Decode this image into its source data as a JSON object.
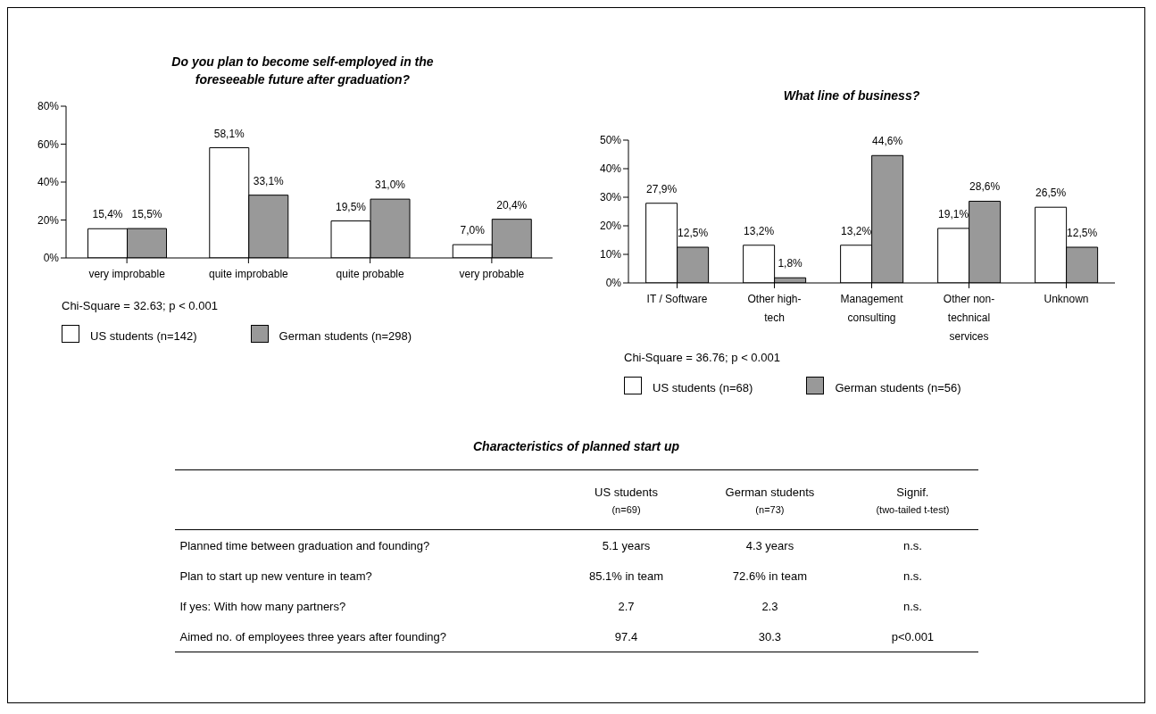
{
  "chart_data": [
    {
      "type": "bar",
      "title": "Do you plan to become self-employed in the foreseeable future after graduation?",
      "categories": [
        "very improbable",
        "quite improbable",
        "quite probable",
        "very probable"
      ],
      "series": [
        {
          "name": "US students (n=142)",
          "color": "#ffffff",
          "values": [
            15.4,
            58.1,
            19.5,
            7.0
          ],
          "value_labels": [
            "15,4%",
            "58,1%",
            "19,5%",
            "7,0%"
          ]
        },
        {
          "name": "German students (n=298)",
          "color": "#999999",
          "values": [
            15.5,
            33.1,
            31.0,
            20.4
          ],
          "value_labels": [
            "15,5%",
            "33,1%",
            "31,0%",
            "20,4%"
          ]
        }
      ],
      "ylim": [
        0,
        80
      ],
      "yticks": [
        {
          "value": 0,
          "label": "0%"
        },
        {
          "value": 20,
          "label": "20%"
        },
        {
          "value": 40,
          "label": "40%"
        },
        {
          "value": 60,
          "label": "60%"
        },
        {
          "value": 80,
          "label": "80%"
        }
      ],
      "legend": "bottom",
      "annotations": [
        "Chi-Square = 32.63; p < 0.001"
      ]
    },
    {
      "type": "bar",
      "title": "What line of business?",
      "categories": [
        "IT / Software",
        "Other high-tech",
        "Management consulting",
        "Other non-technical services",
        "Unknown"
      ],
      "series": [
        {
          "name": "US students (n=68)",
          "color": "#ffffff",
          "values": [
            27.9,
            13.2,
            13.2,
            19.1,
            26.5
          ],
          "value_labels": [
            "27,9%",
            "13,2%",
            "13,2%",
            "19,1%",
            "26,5%"
          ]
        },
        {
          "name": "German students (n=56)",
          "color": "#999999",
          "values": [
            12.5,
            1.8,
            44.6,
            28.6,
            12.5
          ],
          "value_labels": [
            "12,5%",
            "1,8%",
            "44,6%",
            "28,6%",
            "12,5%"
          ]
        }
      ],
      "ylim": [
        0,
        50
      ],
      "yticks": [
        {
          "value": 0,
          "label": "0%"
        },
        {
          "value": 10,
          "label": "10%"
        },
        {
          "value": 20,
          "label": "20%"
        },
        {
          "value": 30,
          "label": "30%"
        },
        {
          "value": 40,
          "label": "40%"
        },
        {
          "value": 50,
          "label": "50%"
        }
      ],
      "legend": "bottom",
      "annotations": [
        "Chi-Square = 36.76; p < 0.001"
      ]
    },
    {
      "type": "other",
      "title": "Characteristics of planned start up",
      "annotations": [
        "US students (n=69)",
        "German students (n=73)",
        "Signif. (two-tailed t-test)",
        "Planned time between graduation and founding?",
        "5.1 years",
        "4.3 years",
        "n.s.",
        "Plan to start up new venture in team?",
        "85.1% in team",
        "72.6% in team",
        "n.s.",
        "If yes: With how many partners?",
        "2.7",
        "2.3",
        "n.s.",
        "Aimed no. of employees three years after founding?",
        "97.4",
        "30.3",
        "p<0.001"
      ]
    }
  ]
}
